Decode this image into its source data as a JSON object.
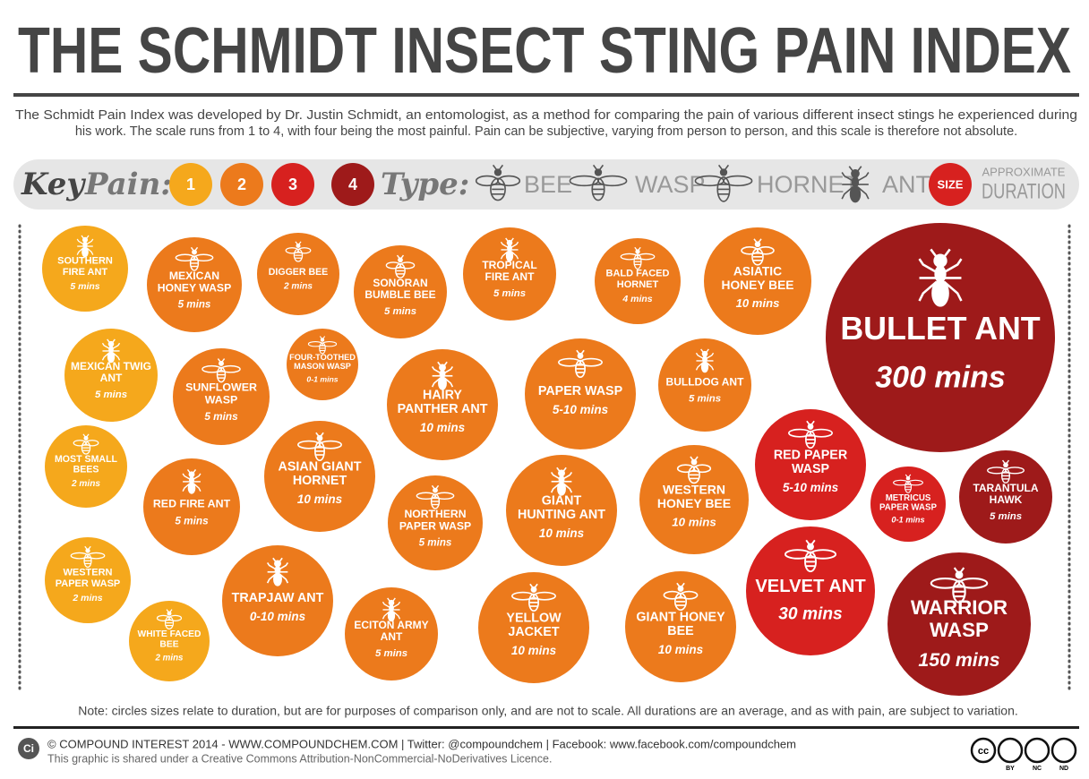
{
  "header": {
    "title": "THE SCHMIDT INSECT STING PAIN INDEX",
    "description": [
      "The Schmidt Pain Index was developed by Dr. Justin Schmidt, an entomologist, as a method for comparing the pain of various different insect stings he experienced during",
      "his work. The scale runs from 1 to 4, with four being the most painful. Pain can be subjective, varying from person to person, and this scale is therefore not absolute."
    ]
  },
  "key": {
    "label": "Key",
    "pain_label": "Pain:",
    "pain": [
      1,
      2,
      3,
      4
    ],
    "pain_colors": [
      "#f5a81c",
      "#ec7a1c",
      "#d7211f",
      "#9e1a1a"
    ],
    "type_label": "Type:",
    "types": [
      "BEE",
      "WASP",
      "HORNET",
      "ANT"
    ],
    "size_label": "SIZE",
    "size_note": [
      "APPROXIMATE",
      "DURATION"
    ]
  },
  "insects": [
    {
      "name": "SOUTHERN FIRE ANT",
      "duration": "5 mins",
      "pain": 1,
      "icon": "ant"
    },
    {
      "name": "MEXICAN TWIG ANT",
      "duration": "5 mins",
      "pain": 1,
      "icon": "ant"
    },
    {
      "name": "MOST SMALL BEES",
      "duration": "2 mins",
      "pain": 1,
      "icon": "bee"
    },
    {
      "name": "WESTERN PAPER WASP",
      "duration": "2 mins",
      "pain": 1,
      "icon": "wasp"
    },
    {
      "name": "WHITE FACED BEE",
      "duration": "2 mins",
      "pain": 1,
      "icon": "bee"
    },
    {
      "name": "MEXICAN HONEY WASP",
      "duration": "5 mins",
      "pain": 2,
      "icon": "wasp"
    },
    {
      "name": "DIGGER BEE",
      "duration": "2 mins",
      "pain": 2,
      "icon": "bee"
    },
    {
      "name": "SONORAN BUMBLE BEE",
      "duration": "5 mins",
      "pain": 2,
      "icon": "bee"
    },
    {
      "name": "TROPICAL FIRE ANT",
      "duration": "5 mins",
      "pain": 2,
      "icon": "ant"
    },
    {
      "name": "BALD FACED HORNET",
      "duration": "4 mins",
      "pain": 2,
      "icon": "hornet"
    },
    {
      "name": "ASIATIC HONEY BEE",
      "duration": "10 mins",
      "pain": 2,
      "icon": "bee"
    },
    {
      "name": "FOUR-TOOTHED MASON WASP",
      "duration": "0-1 mins",
      "pain": 2,
      "icon": "wasp"
    },
    {
      "name": "SUNFLOWER WASP",
      "duration": "5 mins",
      "pain": 2,
      "icon": "wasp"
    },
    {
      "name": "HAIRY PANTHER ANT",
      "duration": "10 mins",
      "pain": 2,
      "icon": "ant"
    },
    {
      "name": "PAPER WASP",
      "duration": "5-10 mins",
      "pain": 2,
      "icon": "wasp"
    },
    {
      "name": "BULLDOG ANT",
      "duration": "5 mins",
      "pain": 2,
      "icon": "ant"
    },
    {
      "name": "RED FIRE ANT",
      "duration": "5 mins",
      "pain": 2,
      "icon": "ant"
    },
    {
      "name": "ASIAN GIANT HORNET",
      "duration": "10 mins",
      "pain": 2,
      "icon": "hornet"
    },
    {
      "name": "NORTHERN PAPER WASP",
      "duration": "5 mins",
      "pain": 2,
      "icon": "wasp"
    },
    {
      "name": "GIANT HUNTING ANT",
      "duration": "10 mins",
      "pain": 2,
      "icon": "ant"
    },
    {
      "name": "WESTERN HONEY BEE",
      "duration": "10 mins",
      "pain": 2,
      "icon": "bee"
    },
    {
      "name": "TRAPJAW ANT",
      "duration": "0-10 mins",
      "pain": 2,
      "icon": "ant"
    },
    {
      "name": "ECITON ARMY ANT",
      "duration": "5 mins",
      "pain": 2,
      "icon": "ant"
    },
    {
      "name": "YELLOW JACKET",
      "duration": "10 mins",
      "pain": 2,
      "icon": "wasp"
    },
    {
      "name": "GIANT HONEY BEE",
      "duration": "10 mins",
      "pain": 2,
      "icon": "bee"
    },
    {
      "name": "RED PAPER WASP",
      "duration": "5-10 mins",
      "pain": 3,
      "icon": "wasp"
    },
    {
      "name": "METRICUS PAPER WASP",
      "duration": "0-1 mins",
      "pain": 3,
      "icon": "wasp"
    },
    {
      "name": "VELVET ANT",
      "duration": "30 mins",
      "pain": 3,
      "icon": "wasp"
    },
    {
      "name": "BULLET ANT",
      "duration": "300 mins",
      "pain": 4,
      "icon": "ant"
    },
    {
      "name": "TARANTULA HAWK",
      "duration": "5 mins",
      "pain": 4,
      "icon": "wasp"
    },
    {
      "name": "WARRIOR WASP",
      "duration": "150 mins",
      "pain": 4,
      "icon": "wasp"
    }
  ],
  "note": "Note: circles sizes relate to duration, but are for purposes of comparison only, and are not to scale. All durations are an average, and as with pain, are subject to variation.",
  "footer": {
    "logo": "Ci",
    "credit": "© COMPOUND INTEREST 2014 - WWW.COMPOUNDCHEM.COM | Twitter: @compoundchem | Facebook: www.facebook.com/compoundchem",
    "licence": "This graphic is shared under a Creative Commons Attribution-NonCommercial-NoDerivatives Licence.",
    "badges": [
      "cc",
      "BY",
      "NC",
      "ND"
    ]
  }
}
